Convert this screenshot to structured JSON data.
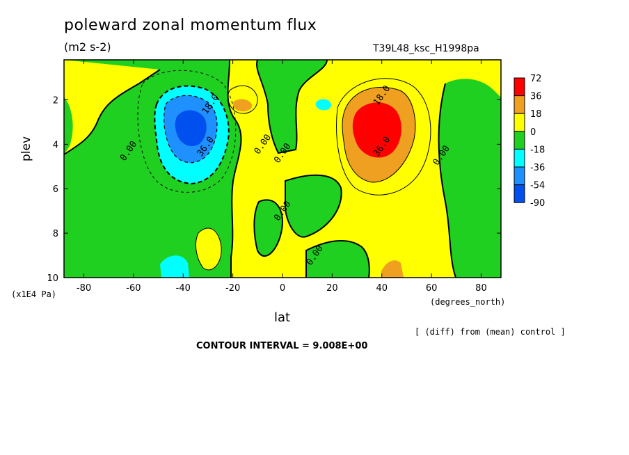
{
  "chart_data": {
    "type": "contour",
    "title": "poleward zonal momentum flux",
    "units": "(m2 s-2)",
    "run_label": "T39L48_ksc_H1998pa",
    "xlabel": "lat",
    "x_units": "(degrees_north)",
    "ylabel": "plev",
    "y_units": "(x1E4 Pa)",
    "xlim": [
      -88,
      88
    ],
    "ylim": [
      10,
      0.2
    ],
    "x_ticks": [
      "-80",
      "-60",
      "-40",
      "-20",
      "0",
      "20",
      "40",
      "60",
      "80"
    ],
    "y_ticks": [
      "2",
      "4",
      "6",
      "8",
      "10"
    ],
    "note": "[ (diff) from (mean) control ]",
    "contour_interval_label": "CONTOUR INTERVAL = 9.008E+00",
    "colorbar": {
      "levels": [
        "72",
        "36",
        "18",
        "0",
        "-18",
        "-36",
        "-54",
        "-90"
      ],
      "colors": [
        "#ff0000",
        "#f0a020",
        "#ffff00",
        "#20d020",
        "#00ffff",
        "#1e90ff",
        "#0050f0"
      ]
    },
    "features": [
      {
        "name": "southern negative core",
        "lat": -38,
        "plev": 3.2,
        "value": -45
      },
      {
        "name": "northern positive core",
        "lat": 36,
        "plev": 2.9,
        "value": 54
      },
      {
        "name": "southern lower negative",
        "lat": -43,
        "plev": 9.5,
        "value": -20
      },
      {
        "name": "northern lower positive",
        "lat": 43,
        "plev": 9.7,
        "value": 20
      }
    ],
    "contour_labels": [
      {
        "text": "18.0",
        "lat": -29,
        "plev": 2.2
      },
      {
        "text": "36.0",
        "lat": -31,
        "plev": 4.1
      },
      {
        "text": "0.00",
        "lat": -62,
        "plev": 4.3
      },
      {
        "text": "0.00",
        "lat": -8,
        "plev": 4.0
      },
      {
        "text": "0.00",
        "lat": 0,
        "plev": 4.4
      },
      {
        "text": "0.00",
        "lat": 0,
        "plev": 7.0
      },
      {
        "text": "0.00",
        "lat": 13,
        "plev": 9.0
      },
      {
        "text": "18.0",
        "lat": 40,
        "plev": 1.8
      },
      {
        "text": "36.0",
        "lat": 40,
        "plev": 4.1
      },
      {
        "text": "0.00",
        "lat": 64,
        "plev": 4.5
      }
    ]
  }
}
